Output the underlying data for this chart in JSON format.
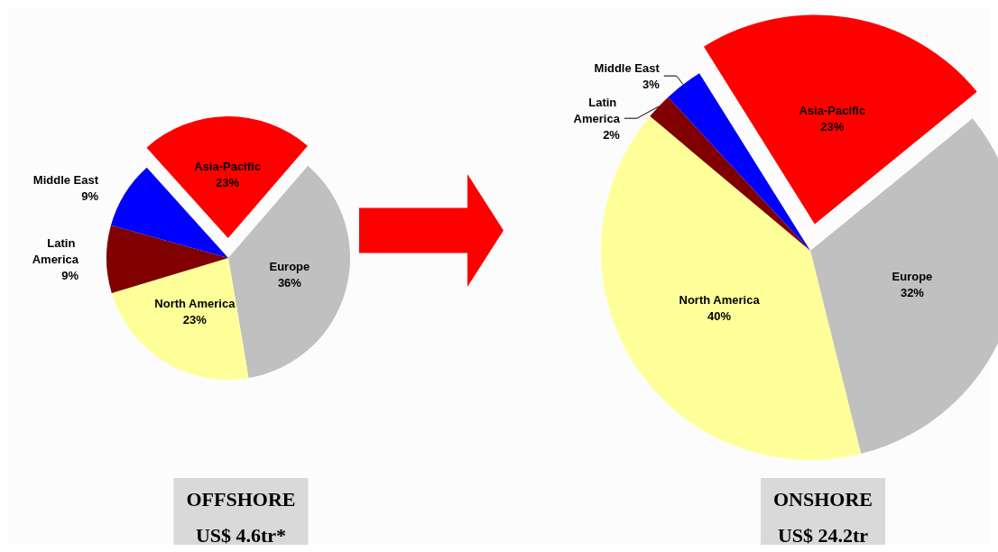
{
  "chart_data": [
    {
      "type": "pie",
      "title": "OFFSHORE",
      "subtitle": "US$ 4.6tr*",
      "categories": [
        "Asia-Pacific",
        "Europe",
        "North America",
        "Latin America",
        "Middle East"
      ],
      "values": [
        23,
        36,
        23,
        9,
        9
      ],
      "colors": [
        "#ff0000",
        "#c0c0c0",
        "#ffff99",
        "#800000",
        "#0000ff"
      ],
      "value_labels": [
        "23%",
        "36%",
        "23%",
        "9%",
        "9%"
      ]
    },
    {
      "type": "pie",
      "title": "ONSHORE",
      "subtitle": "US$ 24.2tr",
      "categories": [
        "Asia-Pacific",
        "Europe",
        "North America",
        "Latin America",
        "Middle East"
      ],
      "values": [
        23,
        32,
        40,
        2,
        3
      ],
      "colors": [
        "#ff0000",
        "#c0c0c0",
        "#ffff99",
        "#800000",
        "#0000ff"
      ],
      "value_labels": [
        "23%",
        "32%",
        "40%",
        "2%",
        "3%"
      ]
    }
  ]
}
